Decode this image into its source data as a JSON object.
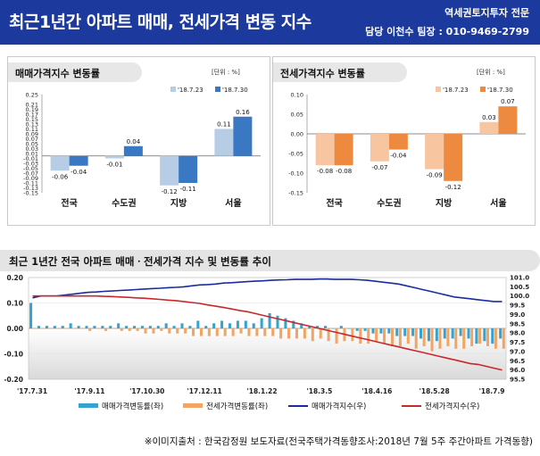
{
  "header": {
    "title": "최근1년간 아파트 매매, 전세가격 변동 지수",
    "agent_line1": "역세권토지투자 전문",
    "agent_line2": "담당 이천수 팀장 : 010-9469-2799",
    "bg_color": "#1c3a9e"
  },
  "source_note": "※이미지출처 : 한국감정원 보도자료(전국주택가격동향조사:2018년 7월 5주 주간아파트 가격동향)",
  "chart_data": [
    {
      "type": "bar",
      "title": "매매가격지수 변동률",
      "unit_label": "[단위 : %]",
      "categories": [
        "전국",
        "수도권",
        "지방",
        "서울"
      ],
      "ylim": [
        -0.15,
        0.25
      ],
      "yticks": [
        "0.25",
        "0.21",
        "0.19",
        "0.17",
        "0.15",
        "0.13",
        "0.11",
        "0.09",
        "0.07",
        "0.05",
        "0.03",
        "0.01",
        "-0.01",
        "-0.03",
        "-0.05",
        "-0.07",
        "-0.09",
        "-0.11",
        "-0.13",
        "-0.15"
      ],
      "series": [
        {
          "name": "'18.7.23",
          "values": [
            -0.06,
            -0.01,
            -0.12,
            0.11
          ],
          "color": "#b7cde6"
        },
        {
          "name": "'18.7.30",
          "values": [
            -0.04,
            0.04,
            -0.11,
            0.16
          ],
          "color": "#3a78c3"
        }
      ]
    },
    {
      "type": "bar",
      "title": "전세가격지수 변동률",
      "unit_label": "[단위 : %]",
      "categories": [
        "전국",
        "수도권",
        "지방",
        "서울"
      ],
      "ylim": [
        -0.15,
        0.1
      ],
      "yticks": [
        "0.10",
        "0.05",
        "0.00",
        "-0.05",
        "-0.10",
        "-0.15"
      ],
      "series": [
        {
          "name": "'18.7.23",
          "values": [
            -0.08,
            -0.07,
            -0.09,
            0.03
          ],
          "color": "#f7c6a1"
        },
        {
          "name": "'18.7.30",
          "values": [
            -0.08,
            -0.04,
            -0.12,
            0.07
          ],
          "color": "#ee8a3f"
        }
      ]
    },
    {
      "type": "line",
      "title": "최근 1년간 전국 아파트 매매ㆍ전세가격 지수 및 변동률 추이",
      "x_labels": [
        "'17.7.31",
        "'17.9.11",
        "'17.10.30",
        "'17.12.11",
        "'18.1.22",
        "'18.3.5",
        "'18.4.16",
        "'18.5.28",
        "'18.7.9"
      ],
      "left_ticks": [
        "0.20",
        "0.10",
        "0.00",
        "-0.10",
        "-0.20"
      ],
      "left_ylim": [
        -0.2,
        0.2
      ],
      "right_ticks": [
        "101.0",
        "100.5",
        "100.0",
        "99.5",
        "99.0",
        "98.5",
        "98.0",
        "97.5",
        "97.0",
        "96.5",
        "96.0",
        "95.5"
      ],
      "right_ylim": [
        95.5,
        101.0
      ],
      "legend": [
        "매매가격변동률(좌)",
        "전세가격변동률(좌)",
        "매매가격지수(우)",
        "전세가격지수(우)"
      ],
      "series": [
        {
          "name": "매매가격변동률(좌)",
          "axis": "left",
          "kind": "bar",
          "color": "#35a2cf",
          "values": [
            0.1,
            0.01,
            0.01,
            0.01,
            0.01,
            0.02,
            0.01,
            0.01,
            0.01,
            0.01,
            0.01,
            0.02,
            0.01,
            0.01,
            0.01,
            0.01,
            0.01,
            0.02,
            0.01,
            0.02,
            0.01,
            0.03,
            0.01,
            0.02,
            0.03,
            0.02,
            0.03,
            0.03,
            0.02,
            0.04,
            0.06,
            0.05,
            0.04,
            0.03,
            0.02,
            0.01,
            0.01,
            0.01,
            0.0,
            0.01,
            0.0,
            -0.01,
            -0.01,
            -0.02,
            -0.02,
            -0.02,
            -0.03,
            -0.03,
            -0.03,
            -0.04,
            -0.05,
            -0.05,
            -0.04,
            -0.04,
            -0.03,
            -0.04,
            -0.06,
            -0.05,
            -0.06,
            -0.04
          ]
        },
        {
          "name": "전세가격변동률(좌)",
          "axis": "left",
          "kind": "bar",
          "color": "#f2a464",
          "values": [
            0.0,
            0.0,
            0.0,
            0.0,
            0.0,
            0.0,
            0.0,
            -0.01,
            0.0,
            -0.01,
            0.0,
            -0.01,
            -0.01,
            -0.01,
            -0.02,
            -0.02,
            -0.01,
            -0.02,
            -0.02,
            -0.02,
            -0.03,
            -0.03,
            -0.03,
            -0.03,
            -0.03,
            -0.03,
            -0.02,
            -0.03,
            -0.03,
            -0.03,
            -0.03,
            -0.04,
            -0.04,
            -0.04,
            -0.04,
            -0.05,
            -0.04,
            -0.05,
            -0.06,
            -0.05,
            -0.05,
            -0.06,
            -0.06,
            -0.05,
            -0.06,
            -0.07,
            -0.07,
            -0.06,
            -0.08,
            -0.07,
            -0.09,
            -0.08,
            -0.07,
            -0.08,
            -0.08,
            -0.07,
            -0.06,
            -0.07,
            -0.08,
            -0.08
          ]
        },
        {
          "name": "매매가격지수(우)",
          "axis": "right",
          "kind": "line",
          "color": "#1b2c9e",
          "values": [
            99.9,
            100.0,
            100.0,
            100.0,
            100.05,
            100.1,
            100.15,
            100.2,
            100.22,
            100.25,
            100.27,
            100.3,
            100.32,
            100.35,
            100.38,
            100.4,
            100.42,
            100.45,
            100.47,
            100.5,
            100.55,
            100.6,
            100.62,
            100.65,
            100.7,
            100.72,
            100.75,
            100.78,
            100.8,
            100.82,
            100.85,
            100.87,
            100.88,
            100.9,
            100.9,
            100.9,
            100.92,
            100.92,
            100.9,
            100.9,
            100.9,
            100.88,
            100.85,
            100.8,
            100.75,
            100.7,
            100.65,
            100.55,
            100.45,
            100.35,
            100.25,
            100.15,
            100.05,
            99.95,
            99.9,
            99.85,
            99.8,
            99.75,
            99.7,
            99.7
          ]
        },
        {
          "name": "전세가격지수(우)",
          "axis": "right",
          "kind": "line",
          "color": "#c8282b",
          "values": [
            100.0,
            100.0,
            100.0,
            100.0,
            100.0,
            100.0,
            100.0,
            100.0,
            100.0,
            99.98,
            99.97,
            99.95,
            99.93,
            99.9,
            99.88,
            99.85,
            99.82,
            99.78,
            99.75,
            99.7,
            99.65,
            99.6,
            99.52,
            99.45,
            99.38,
            99.3,
            99.22,
            99.15,
            99.05,
            98.95,
            98.85,
            98.75,
            98.65,
            98.55,
            98.45,
            98.35,
            98.25,
            98.15,
            98.05,
            97.95,
            97.85,
            97.75,
            97.65,
            97.55,
            97.45,
            97.35,
            97.25,
            97.15,
            97.05,
            96.95,
            96.85,
            96.75,
            96.65,
            96.55,
            96.45,
            96.35,
            96.3,
            96.2,
            96.1,
            96.0
          ]
        }
      ]
    }
  ]
}
